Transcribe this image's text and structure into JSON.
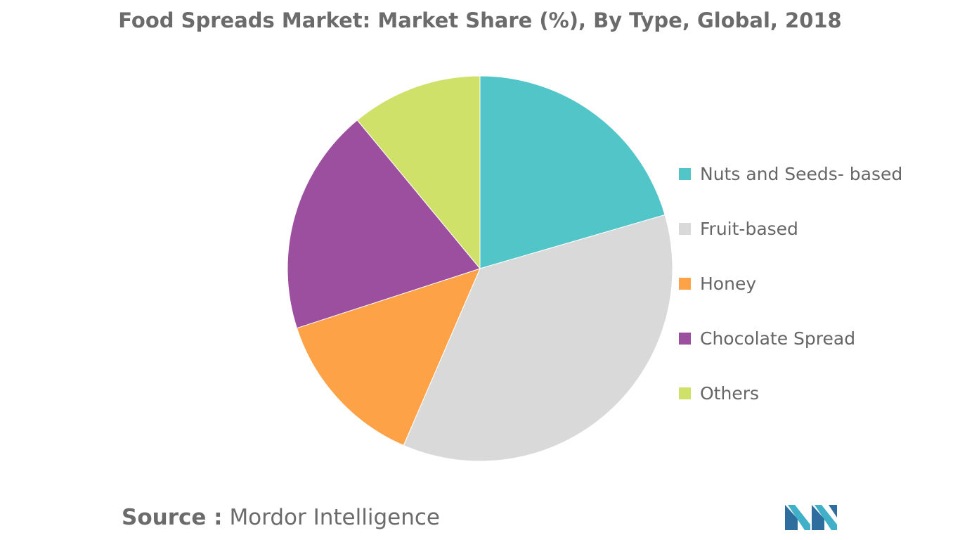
{
  "chart_data": {
    "type": "pie",
    "title": "Food Spreads Market: Market Share (%), By Type, Global, 2018",
    "categories": [
      "Nuts and Seeds- based",
      "Fruit-based",
      "Honey",
      "Chocolate Spread",
      "Others"
    ],
    "values": [
      20.5,
      36.0,
      13.5,
      19.0,
      11.0
    ],
    "colors": [
      "#52c5c9",
      "#d9d9d9",
      "#fda247",
      "#9c4f9f",
      "#d0e16a"
    ],
    "legend_position": "right"
  },
  "source": {
    "label": "Source :",
    "text": "Mordor Intelligence"
  },
  "logo": {
    "icon": "mordor-intelligence-logo",
    "colors": [
      "#2d6e9e",
      "#3fb0c7"
    ]
  }
}
